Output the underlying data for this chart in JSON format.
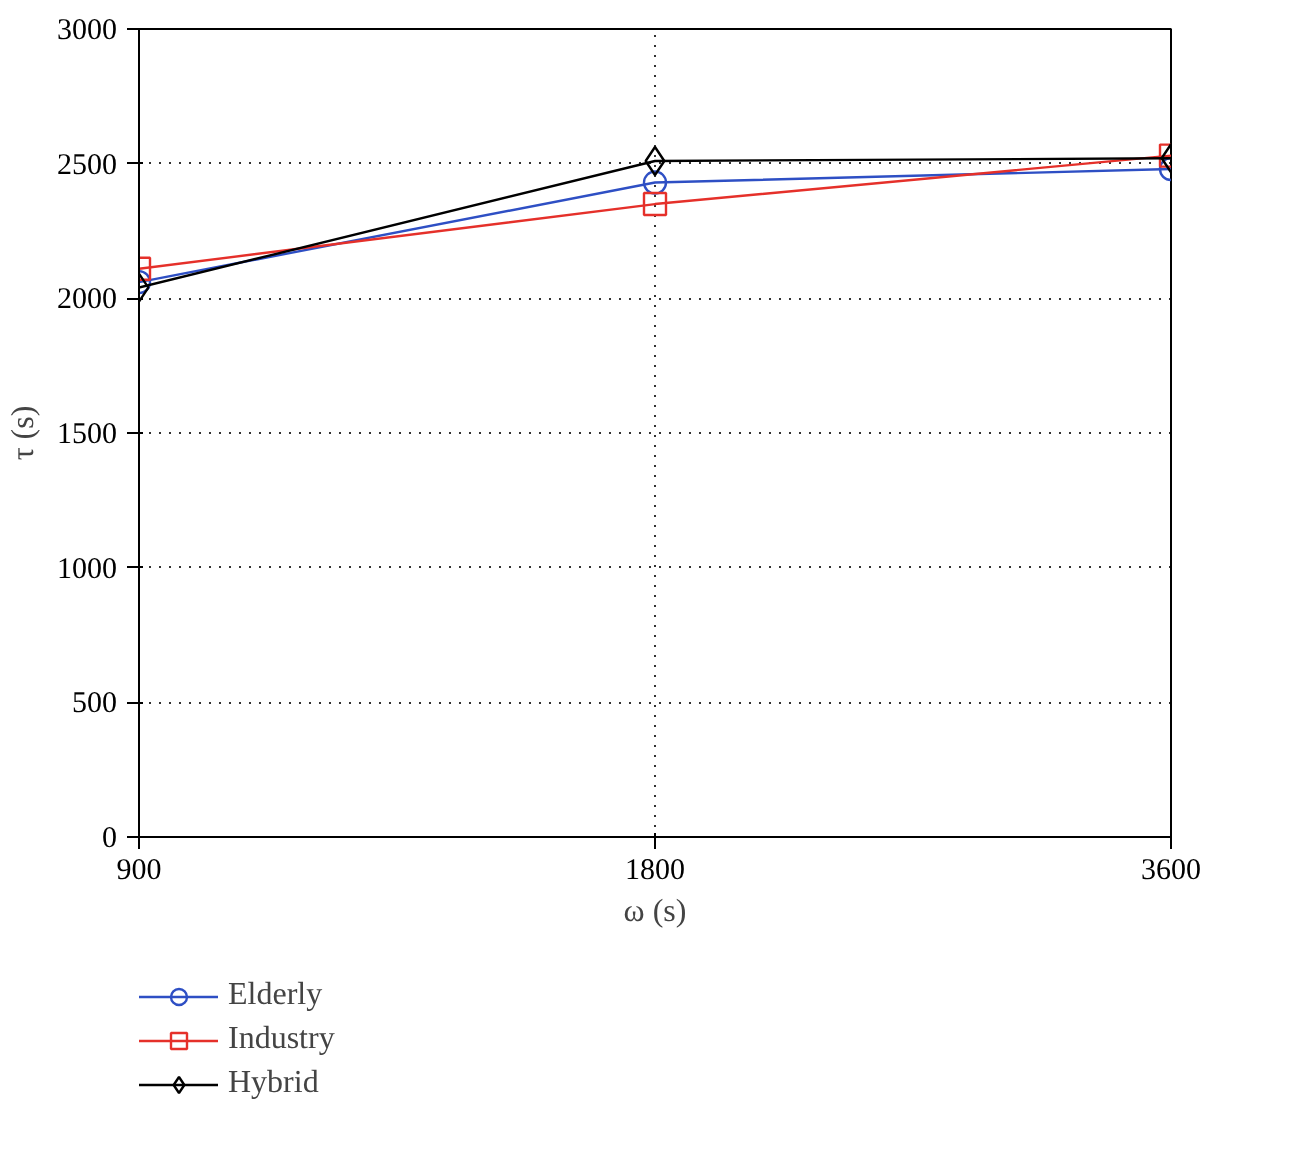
{
  "chart_data": {
    "type": "line",
    "xlabel": "ω (s)",
    "ylabel": "τ (s)",
    "categories": [
      "900",
      "1800",
      "3600"
    ],
    "ylim": [
      0,
      3000
    ],
    "yticks": [
      0,
      500,
      1000,
      1500,
      2000,
      2500,
      3000
    ],
    "grid": true,
    "legend": "bottom",
    "line_style": "solid",
    "series": [
      {
        "name": "Elderly",
        "color": "#2e4fc4",
        "marker": "circle",
        "values": [
          2060,
          2430,
          2480
        ]
      },
      {
        "name": "Industry",
        "color": "#e5302a",
        "marker": "square",
        "values": [
          2110,
          2350,
          2530
        ]
      },
      {
        "name": "Hybrid",
        "color": "#000000",
        "marker": "diamond",
        "values": [
          2040,
          2510,
          2520
        ]
      }
    ]
  }
}
